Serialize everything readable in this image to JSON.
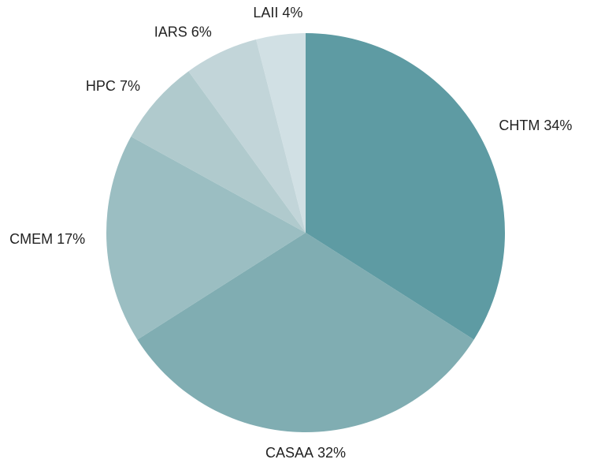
{
  "chart_data": {
    "type": "pie",
    "categories": [
      "CHTM",
      "CASAA",
      "CMEM",
      "HPC",
      "IARS",
      "LAII"
    ],
    "values": [
      34,
      32,
      17,
      7,
      6,
      4
    ],
    "value_labels": [
      "34%",
      "32%",
      "17%",
      "7%",
      "6%",
      "4%"
    ],
    "colors": [
      "#5e9ba3",
      "#80adb2",
      "#9bbec2",
      "#b0cacd",
      "#c2d5d9",
      "#d1e0e4"
    ]
  }
}
